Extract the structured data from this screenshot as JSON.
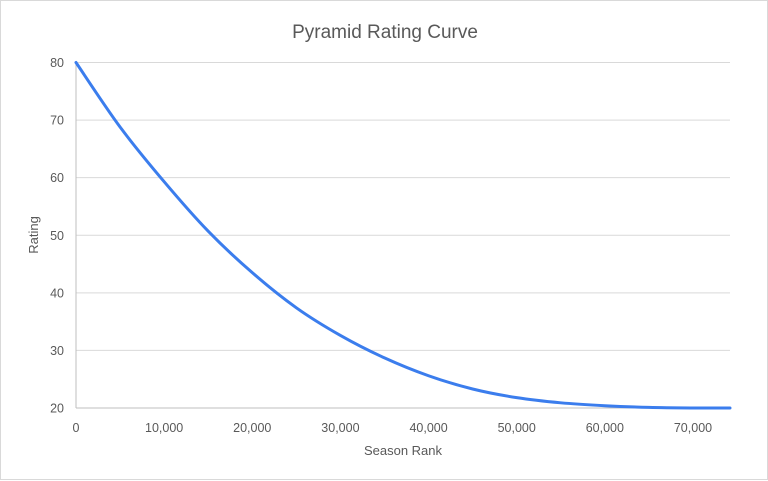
{
  "chart_data": {
    "type": "line",
    "title": "Pyramid Rating Curve",
    "xlabel": "Season Rank",
    "ylabel": "Rating",
    "xlim": [
      0,
      74200
    ],
    "ylim": [
      20,
      80
    ],
    "xticks": [
      0,
      10000,
      20000,
      30000,
      40000,
      50000,
      60000,
      70000
    ],
    "xtick_labels": [
      "0",
      "10,000",
      "20,000",
      "30,000",
      "40,000",
      "50,000",
      "60,000",
      "70,000"
    ],
    "yticks": [
      20,
      30,
      40,
      50,
      60,
      70,
      80
    ],
    "ytick_labels": [
      "20",
      "30",
      "40",
      "50",
      "60",
      "70",
      "80"
    ],
    "grid": "horizontal",
    "legend": "none",
    "series": [
      {
        "color": "#3b7ded",
        "x": [
          0,
          5000,
          10000,
          15000,
          20000,
          25000,
          30000,
          35000,
          40000,
          45000,
          50000,
          55000,
          60000,
          65000,
          70000,
          74200
        ],
        "y": [
          80,
          68.8,
          59.3,
          50.7,
          43.5,
          37.4,
          32.6,
          28.7,
          25.6,
          23.3,
          21.8,
          20.9,
          20.4,
          20.1,
          20.0,
          20.0
        ]
      }
    ]
  }
}
